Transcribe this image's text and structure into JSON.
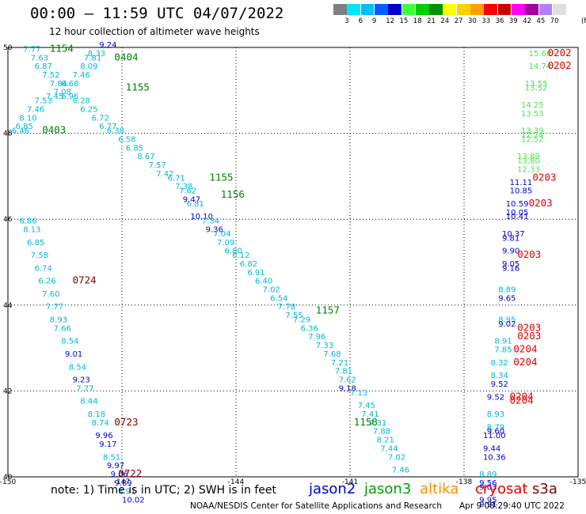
{
  "header": {
    "title": "00:00 – 11:59 UTC 04/07/2022",
    "subtitle": "12 hour collection of altimeter wave heights"
  },
  "legend": {
    "unit": "(ft)",
    "items": [
      {
        "label": "",
        "color": "#7f7f7f"
      },
      {
        "label": "3",
        "color": "#00e5ff"
      },
      {
        "label": "6",
        "color": "#00bfff"
      },
      {
        "label": "9",
        "color": "#0060ff"
      },
      {
        "label": "12",
        "color": "#0000c8"
      },
      {
        "label": "15",
        "color": "#3cff3c"
      },
      {
        "label": "18",
        "color": "#00d000"
      },
      {
        "label": "21",
        "color": "#009000"
      },
      {
        "label": "24",
        "color": "#ffff00"
      },
      {
        "label": "27",
        "color": "#ffd000"
      },
      {
        "label": "30",
        "color": "#ffa000"
      },
      {
        "label": "33",
        "color": "#ff0000"
      },
      {
        "label": "36",
        "color": "#c80000"
      },
      {
        "label": "39",
        "color": "#ff00ff"
      },
      {
        "label": "42",
        "color": "#a000a0"
      },
      {
        "label": "45",
        "color": "#b080ff"
      },
      {
        "label": "70",
        "color": "#e0e0e0"
      }
    ]
  },
  "map": {
    "x_ticks": [
      "-150",
      "-147",
      "-144",
      "-141",
      "-138",
      "-135"
    ],
    "y_ticks": [
      "50",
      "48",
      "46",
      "44",
      "42",
      "40"
    ],
    "colors": {
      "cyan": "#00b8d8",
      "blue": "#0000c8",
      "light_green": "#50e050",
      "green": "#008000",
      "red": "#e00000",
      "dark_red": "#800000"
    },
    "times": [
      {
        "t": "1154",
        "c": "green",
        "lon": -148.9,
        "lat": 49.9
      },
      {
        "t": "0404",
        "c": "green",
        "lon": -147.2,
        "lat": 49.7
      },
      {
        "t": "1155",
        "c": "green",
        "lon": -146.9,
        "lat": 49.0
      },
      {
        "t": "0403",
        "c": "green",
        "lon": -149.1,
        "lat": 48.0
      },
      {
        "t": "1155",
        "c": "green",
        "lon": -144.7,
        "lat": 46.9
      },
      {
        "t": "1156",
        "c": "green",
        "lon": -144.4,
        "lat": 46.5
      },
      {
        "t": "0724",
        "c": "dark_red",
        "lon": -148.3,
        "lat": 44.5
      },
      {
        "t": "1157",
        "c": "green",
        "lon": -141.9,
        "lat": 43.8
      },
      {
        "t": "0723",
        "c": "dark_red",
        "lon": -147.2,
        "lat": 41.2
      },
      {
        "t": "0722",
        "c": "dark_red",
        "lon": -147.1,
        "lat": 40.0
      },
      {
        "t": "1158",
        "c": "green",
        "lon": -140.9,
        "lat": 41.2
      },
      {
        "t": "0202",
        "c": "red",
        "lon": -135.8,
        "lat": 49.8
      },
      {
        "t": "0202",
        "c": "red",
        "lon": -135.8,
        "lat": 49.5
      },
      {
        "t": "0203",
        "c": "red",
        "lon": -136.2,
        "lat": 46.9
      },
      {
        "t": "0203",
        "c": "red",
        "lon": -136.3,
        "lat": 46.3
      },
      {
        "t": "0203",
        "c": "red",
        "lon": -136.6,
        "lat": 45.1
      },
      {
        "t": "0203",
        "c": "red",
        "lon": -136.6,
        "lat": 43.4
      },
      {
        "t": "0203",
        "c": "red",
        "lon": -136.6,
        "lat": 43.2
      },
      {
        "t": "0204",
        "c": "red",
        "lon": -136.7,
        "lat": 42.9
      },
      {
        "t": "0204",
        "c": "red",
        "lon": -136.7,
        "lat": 42.6
      },
      {
        "t": "0204",
        "c": "red",
        "lon": -136.8,
        "lat": 41.8
      },
      {
        "t": "0204",
        "c": "red",
        "lon": -136.8,
        "lat": 41.7
      }
    ],
    "swh": [
      {
        "v": "9.24",
        "c": "blue",
        "lon": -147.6,
        "lat": 50.0
      },
      {
        "v": "7.77",
        "c": "cyan",
        "lon": -149.6,
        "lat": 49.9
      },
      {
        "v": "8.33",
        "c": "cyan",
        "lon": -147.9,
        "lat": 49.8
      },
      {
        "v": "7.63",
        "c": "cyan",
        "lon": -149.4,
        "lat": 49.7
      },
      {
        "v": "7.81",
        "c": "cyan",
        "lon": -148.0,
        "lat": 49.7
      },
      {
        "v": "6.87",
        "c": "cyan",
        "lon": -149.3,
        "lat": 49.5
      },
      {
        "v": "8.09",
        "c": "cyan",
        "lon": -148.1,
        "lat": 49.5
      },
      {
        "v": "7.52",
        "c": "cyan",
        "lon": -149.1,
        "lat": 49.3
      },
      {
        "v": "7.46",
        "c": "cyan",
        "lon": -148.3,
        "lat": 49.3
      },
      {
        "v": "7.84",
        "c": "cyan",
        "lon": -148.9,
        "lat": 49.1
      },
      {
        "v": "6.68",
        "c": "cyan",
        "lon": -148.6,
        "lat": 49.1
      },
      {
        "v": "7.08",
        "c": "cyan",
        "lon": -148.8,
        "lat": 48.9
      },
      {
        "v": "7.45",
        "c": "cyan",
        "lon": -149.0,
        "lat": 48.8
      },
      {
        "v": "6.96",
        "c": "cyan",
        "lon": -148.6,
        "lat": 48.8
      },
      {
        "v": "7.53",
        "c": "cyan",
        "lon": -149.3,
        "lat": 48.7
      },
      {
        "v": "6.28",
        "c": "cyan",
        "lon": -148.3,
        "lat": 48.7
      },
      {
        "v": "7.46",
        "c": "cyan",
        "lon": -149.5,
        "lat": 48.5
      },
      {
        "v": "6.25",
        "c": "cyan",
        "lon": -148.1,
        "lat": 48.5
      },
      {
        "v": "8.10",
        "c": "cyan",
        "lon": -149.7,
        "lat": 48.3
      },
      {
        "v": "6.72",
        "c": "cyan",
        "lon": -147.8,
        "lat": 48.3
      },
      {
        "v": "6.85",
        "c": "cyan",
        "lon": -149.8,
        "lat": 48.1
      },
      {
        "v": "6.77",
        "c": "cyan",
        "lon": -147.6,
        "lat": 48.1
      },
      {
        "v": "6.46",
        "c": "cyan",
        "lon": -149.9,
        "lat": 48.0
      },
      {
        "v": "6.38",
        "c": "cyan",
        "lon": -147.4,
        "lat": 48.0
      },
      {
        "v": "6.58",
        "c": "cyan",
        "lon": -147.1,
        "lat": 47.8
      },
      {
        "v": "6.85",
        "c": "cyan",
        "lon": -146.9,
        "lat": 47.6
      },
      {
        "v": "8.67",
        "c": "cyan",
        "lon": -146.6,
        "lat": 47.4
      },
      {
        "v": "7.57",
        "c": "cyan",
        "lon": -146.3,
        "lat": 47.2
      },
      {
        "v": "7.42",
        "c": "cyan",
        "lon": -146.1,
        "lat": 47.0
      },
      {
        "v": "6.71",
        "c": "cyan",
        "lon": -145.8,
        "lat": 46.9
      },
      {
        "v": "7.38",
        "c": "cyan",
        "lon": -145.6,
        "lat": 46.7
      },
      {
        "v": "7.62",
        "c": "cyan",
        "lon": -145.5,
        "lat": 46.6
      },
      {
        "v": "9.47",
        "c": "blue",
        "lon": -145.4,
        "lat": 46.4
      },
      {
        "v": "6.81",
        "c": "cyan",
        "lon": -145.3,
        "lat": 46.3
      },
      {
        "v": "10.10",
        "c": "blue",
        "lon": -145.2,
        "lat": 46.0
      },
      {
        "v": "7.34",
        "c": "cyan",
        "lon": -144.9,
        "lat": 45.9
      },
      {
        "v": "9.36",
        "c": "blue",
        "lon": -144.8,
        "lat": 45.7
      },
      {
        "v": "7.04",
        "c": "cyan",
        "lon": -144.6,
        "lat": 45.6
      },
      {
        "v": "7.09",
        "c": "cyan",
        "lon": -144.5,
        "lat": 45.4
      },
      {
        "v": "6.80",
        "c": "cyan",
        "lon": -144.3,
        "lat": 45.2
      },
      {
        "v": "6.12",
        "c": "cyan",
        "lon": -144.1,
        "lat": 45.1
      },
      {
        "v": "6.82",
        "c": "cyan",
        "lon": -143.9,
        "lat": 44.9
      },
      {
        "v": "6.91",
        "c": "cyan",
        "lon": -143.7,
        "lat": 44.7
      },
      {
        "v": "6.40",
        "c": "cyan",
        "lon": -143.5,
        "lat": 44.5
      },
      {
        "v": "7.02",
        "c": "cyan",
        "lon": -143.3,
        "lat": 44.3
      },
      {
        "v": "6.54",
        "c": "cyan",
        "lon": -143.1,
        "lat": 44.1
      },
      {
        "v": "7.78",
        "c": "cyan",
        "lon": -142.9,
        "lat": 43.9
      },
      {
        "v": "7.55",
        "c": "cyan",
        "lon": -142.7,
        "lat": 43.7
      },
      {
        "v": "7.29",
        "c": "cyan",
        "lon": -142.5,
        "lat": 43.6
      },
      {
        "v": "6.36",
        "c": "cyan",
        "lon": -142.3,
        "lat": 43.4
      },
      {
        "v": "7.96",
        "c": "cyan",
        "lon": -142.1,
        "lat": 43.2
      },
      {
        "v": "7.33",
        "c": "cyan",
        "lon": -141.9,
        "lat": 43.0
      },
      {
        "v": "7.68",
        "c": "cyan",
        "lon": -141.7,
        "lat": 42.8
      },
      {
        "v": "7.21",
        "c": "cyan",
        "lon": -141.5,
        "lat": 42.6
      },
      {
        "v": "7.81",
        "c": "cyan",
        "lon": -141.4,
        "lat": 42.4
      },
      {
        "v": "7.62",
        "c": "cyan",
        "lon": -141.3,
        "lat": 42.2
      },
      {
        "v": "9.18",
        "c": "blue",
        "lon": -141.3,
        "lat": 42.0
      },
      {
        "v": "7.13",
        "c": "cyan",
        "lon": -141.0,
        "lat": 41.9
      },
      {
        "v": "7.45",
        "c": "cyan",
        "lon": -140.8,
        "lat": 41.6
      },
      {
        "v": "7.41",
        "c": "cyan",
        "lon": -140.7,
        "lat": 41.4
      },
      {
        "v": "7.31",
        "c": "cyan",
        "lon": -140.5,
        "lat": 41.2
      },
      {
        "v": "7.88",
        "c": "cyan",
        "lon": -140.4,
        "lat": 41.0
      },
      {
        "v": "8.21",
        "c": "cyan",
        "lon": -140.3,
        "lat": 40.8
      },
      {
        "v": "7.44",
        "c": "cyan",
        "lon": -140.2,
        "lat": 40.6
      },
      {
        "v": "7.02",
        "c": "cyan",
        "lon": -140.0,
        "lat": 40.4
      },
      {
        "v": "7.46",
        "c": "cyan",
        "lon": -139.9,
        "lat": 40.1
      },
      {
        "v": "6.86",
        "c": "cyan",
        "lon": -149.7,
        "lat": 45.9
      },
      {
        "v": "8.13",
        "c": "cyan",
        "lon": -149.6,
        "lat": 45.7
      },
      {
        "v": "6.85",
        "c": "cyan",
        "lon": -149.5,
        "lat": 45.4
      },
      {
        "v": "7.58",
        "c": "cyan",
        "lon": -149.4,
        "lat": 45.1
      },
      {
        "v": "6.74",
        "c": "cyan",
        "lon": -149.3,
        "lat": 44.8
      },
      {
        "v": "6.26",
        "c": "cyan",
        "lon": -149.2,
        "lat": 44.5
      },
      {
        "v": "7.60",
        "c": "cyan",
        "lon": -149.1,
        "lat": 44.2
      },
      {
        "v": "7.77",
        "c": "cyan",
        "lon": -149.0,
        "lat": 43.9
      },
      {
        "v": "8.93",
        "c": "cyan",
        "lon": -148.9,
        "lat": 43.6
      },
      {
        "v": "7.66",
        "c": "cyan",
        "lon": -148.8,
        "lat": 43.4
      },
      {
        "v": "8.54",
        "c": "cyan",
        "lon": -148.6,
        "lat": 43.1
      },
      {
        "v": "9.01",
        "c": "blue",
        "lon": -148.5,
        "lat": 42.8
      },
      {
        "v": "8.54",
        "c": "cyan",
        "lon": -148.4,
        "lat": 42.5
      },
      {
        "v": "9.23",
        "c": "blue",
        "lon": -148.3,
        "lat": 42.2
      },
      {
        "v": "7.77",
        "c": "cyan",
        "lon": -148.2,
        "lat": 42.0
      },
      {
        "v": "8.44",
        "c": "cyan",
        "lon": -148.1,
        "lat": 41.7
      },
      {
        "v": "8.18",
        "c": "cyan",
        "lon": -147.9,
        "lat": 41.4
      },
      {
        "v": "8.74",
        "c": "cyan",
        "lon": -147.8,
        "lat": 41.2
      },
      {
        "v": "9.96",
        "c": "blue",
        "lon": -147.7,
        "lat": 40.9
      },
      {
        "v": "9.17",
        "c": "blue",
        "lon": -147.6,
        "lat": 40.7
      },
      {
        "v": "8.51",
        "c": "cyan",
        "lon": -147.5,
        "lat": 40.4
      },
      {
        "v": "9.97",
        "c": "blue",
        "lon": -147.4,
        "lat": 40.2
      },
      {
        "v": "9.06",
        "c": "blue",
        "lon": -147.3,
        "lat": 40.0
      },
      {
        "v": "9.89",
        "c": "blue",
        "lon": -147.2,
        "lat": 39.8
      },
      {
        "v": "8.91",
        "c": "cyan",
        "lon": -147.1,
        "lat": 39.6
      },
      {
        "v": "10.02",
        "c": "blue",
        "lon": -147.0,
        "lat": 39.4
      },
      {
        "v": "15.68",
        "c": "light_green",
        "lon": -136.3,
        "lat": 49.8
      },
      {
        "v": "14.74",
        "c": "light_green",
        "lon": -136.3,
        "lat": 49.5
      },
      {
        "v": "13.55",
        "c": "light_green",
        "lon": -136.4,
        "lat": 49.1
      },
      {
        "v": "13.52",
        "c": "light_green",
        "lon": -136.4,
        "lat": 49.0
      },
      {
        "v": "14.25",
        "c": "light_green",
        "lon": -136.5,
        "lat": 48.6
      },
      {
        "v": "13.53",
        "c": "light_green",
        "lon": -136.5,
        "lat": 48.4
      },
      {
        "v": "13.39",
        "c": "light_green",
        "lon": -136.5,
        "lat": 48.0
      },
      {
        "v": "12.74",
        "c": "light_green",
        "lon": -136.5,
        "lat": 47.9
      },
      {
        "v": "12.52",
        "c": "light_green",
        "lon": -136.5,
        "lat": 47.8
      },
      {
        "v": "13.89",
        "c": "light_green",
        "lon": -136.6,
        "lat": 47.4
      },
      {
        "v": "13.80",
        "c": "light_green",
        "lon": -136.6,
        "lat": 47.3
      },
      {
        "v": "12.33",
        "c": "light_green",
        "lon": -136.6,
        "lat": 47.1
      },
      {
        "v": "11.11",
        "c": "blue",
        "lon": -136.8,
        "lat": 46.8
      },
      {
        "v": "10.85",
        "c": "blue",
        "lon": -136.8,
        "lat": 46.6
      },
      {
        "v": "10.59",
        "c": "blue",
        "lon": -136.9,
        "lat": 46.3
      },
      {
        "v": "10.05",
        "c": "blue",
        "lon": -136.9,
        "lat": 46.1
      },
      {
        "v": "10.41",
        "c": "blue",
        "lon": -136.9,
        "lat": 46.0
      },
      {
        "v": "10.37",
        "c": "blue",
        "lon": -137.0,
        "lat": 45.6
      },
      {
        "v": "9.81",
        "c": "blue",
        "lon": -137.0,
        "lat": 45.5
      },
      {
        "v": "9.90",
        "c": "blue",
        "lon": -137.0,
        "lat": 45.2
      },
      {
        "v": "9.05",
        "c": "blue",
        "lon": -137.0,
        "lat": 44.9
      },
      {
        "v": "9.16",
        "c": "blue",
        "lon": -137.0,
        "lat": 44.8
      },
      {
        "v": "8.89",
        "c": "cyan",
        "lon": -137.1,
        "lat": 44.3
      },
      {
        "v": "9.65",
        "c": "blue",
        "lon": -137.1,
        "lat": 44.1
      },
      {
        "v": "8.95",
        "c": "cyan",
        "lon": -137.1,
        "lat": 43.6
      },
      {
        "v": "9.02",
        "c": "blue",
        "lon": -137.1,
        "lat": 43.5
      },
      {
        "v": "8.91",
        "c": "cyan",
        "lon": -137.2,
        "lat": 43.1
      },
      {
        "v": "7.85",
        "c": "cyan",
        "lon": -137.2,
        "lat": 42.9
      },
      {
        "v": "8.32",
        "c": "cyan",
        "lon": -137.3,
        "lat": 42.6
      },
      {
        "v": "8.34",
        "c": "cyan",
        "lon": -137.3,
        "lat": 42.3
      },
      {
        "v": "9.52",
        "c": "blue",
        "lon": -137.3,
        "lat": 42.1
      },
      {
        "v": "9.52",
        "c": "blue",
        "lon": -137.4,
        "lat": 41.8
      },
      {
        "v": "8.93",
        "c": "cyan",
        "lon": -137.4,
        "lat": 41.4
      },
      {
        "v": "8.79",
        "c": "cyan",
        "lon": -137.4,
        "lat": 41.1
      },
      {
        "v": "9.60",
        "c": "blue",
        "lon": -137.4,
        "lat": 41.0
      },
      {
        "v": "11.00",
        "c": "blue",
        "lon": -137.5,
        "lat": 40.9
      },
      {
        "v": "9.44",
        "c": "blue",
        "lon": -137.5,
        "lat": 40.6
      },
      {
        "v": "10.36",
        "c": "blue",
        "lon": -137.5,
        "lat": 40.4
      },
      {
        "v": "8.89",
        "c": "cyan",
        "lon": -137.6,
        "lat": 40.0
      },
      {
        "v": "9.56",
        "c": "blue",
        "lon": -137.6,
        "lat": 39.8
      },
      {
        "v": "9.03",
        "c": "blue",
        "lon": -137.6,
        "lat": 39.7
      },
      {
        "v": "9.95",
        "c": "blue",
        "lon": -137.6,
        "lat": 39.4
      },
      {
        "v": "9.91",
        "c": "blue",
        "lon": -137.6,
        "lat": 39.3
      }
    ]
  },
  "footer": {
    "note": "note:  1) Time is in UTC; 2) SWH is in feet",
    "satellites": [
      {
        "name": "jason2",
        "color": "#0000c8"
      },
      {
        "name": "jason3",
        "color": "#00a000"
      },
      {
        "name": "altika",
        "color": "#ff9000"
      },
      {
        "name": "cryosat",
        "color": "#e00000"
      },
      {
        "name": "s3a",
        "color": "#800000"
      }
    ],
    "credit": "NOAA/NESDIS Center for Satellite Applications and Research",
    "timestamp": "Apr  9 08:29:40 UTC 2022"
  }
}
